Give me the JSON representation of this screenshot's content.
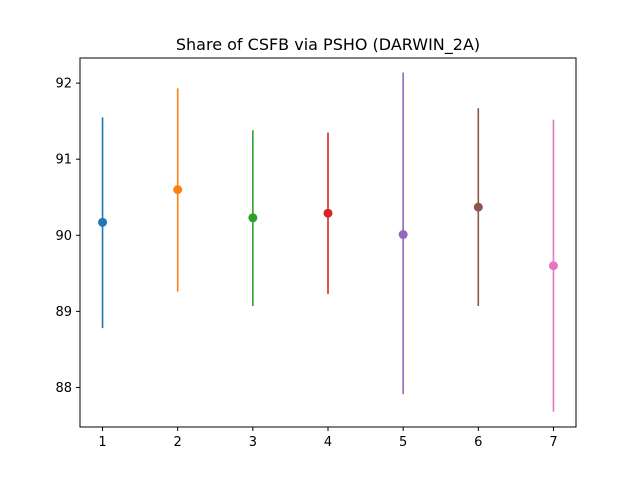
{
  "chart_data": {
    "type": "errorbar",
    "title": "Share of CSFB via PSHO (DARWIN_2A)",
    "xlabel": "",
    "ylabel": "",
    "x": [
      1,
      2,
      3,
      4,
      5,
      6,
      7
    ],
    "xlim": [
      0.7,
      7.3
    ],
    "ylim": [
      87.48,
      92.33
    ],
    "x_ticks": [
      1,
      2,
      3,
      4,
      5,
      6,
      7
    ],
    "y_ticks": [
      88,
      89,
      90,
      91,
      92
    ],
    "grid": false,
    "points": [
      {
        "x": 1,
        "y": 90.17,
        "low": 88.78,
        "high": 91.55,
        "color": "#1f77b4"
      },
      {
        "x": 2,
        "y": 90.6,
        "low": 89.26,
        "high": 91.93,
        "color": "#ff7f0e"
      },
      {
        "x": 3,
        "y": 90.23,
        "low": 89.07,
        "high": 91.38,
        "color": "#2ca02c"
      },
      {
        "x": 4,
        "y": 90.29,
        "low": 89.23,
        "high": 91.35,
        "color": "#d62728"
      },
      {
        "x": 5,
        "y": 90.01,
        "low": 87.91,
        "high": 92.14,
        "color": "#9467bd"
      },
      {
        "x": 6,
        "y": 90.37,
        "low": 89.07,
        "high": 91.67,
        "color": "#8c564b"
      },
      {
        "x": 7,
        "y": 89.6,
        "low": 87.68,
        "high": 91.52,
        "color": "#e377c2"
      }
    ]
  }
}
